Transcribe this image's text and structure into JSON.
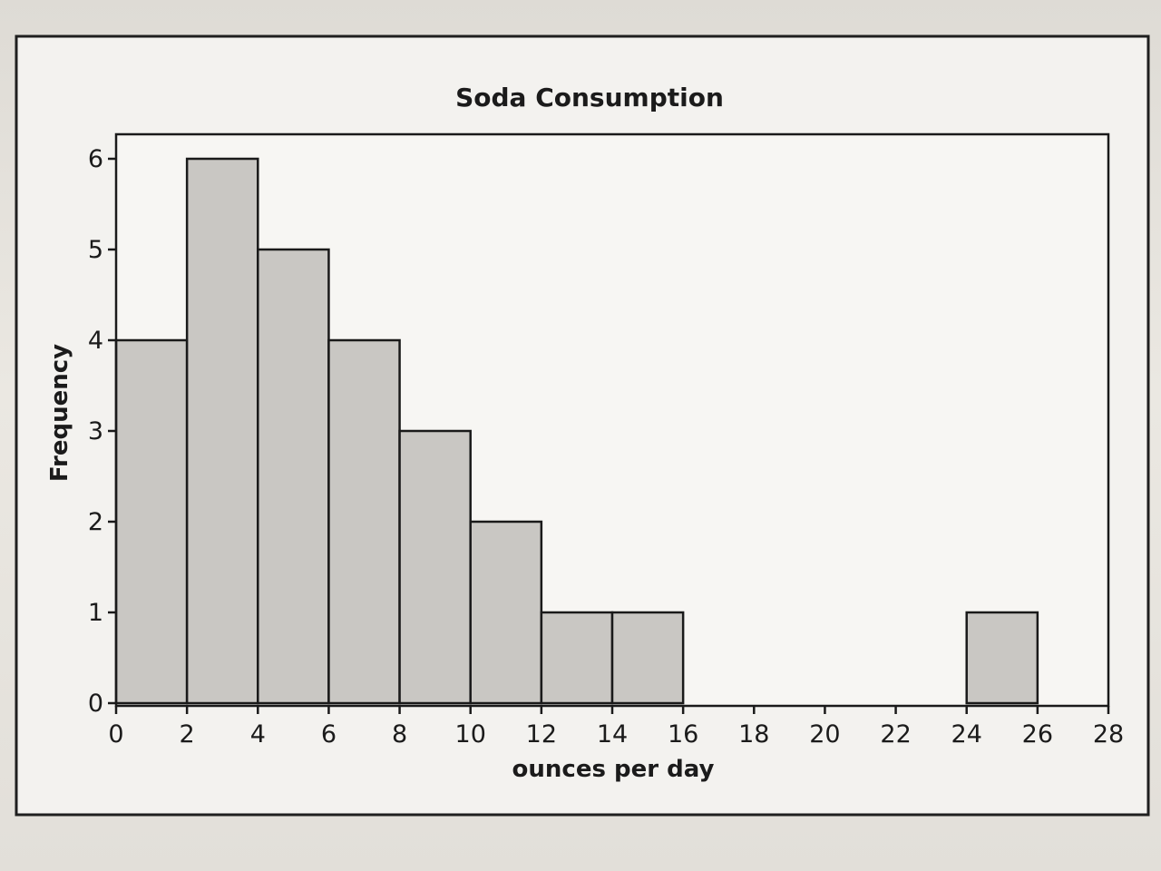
{
  "chart_data": {
    "type": "bar",
    "title": "Soda Consumption",
    "xlabel": "ounces per day",
    "ylabel": "Frequency",
    "bin_edges": [
      0,
      2,
      4,
      6,
      8,
      10,
      12,
      14,
      16,
      18,
      20,
      22,
      24,
      26
    ],
    "values": [
      4,
      6,
      5,
      4,
      3,
      2,
      1,
      1,
      0,
      0,
      0,
      0,
      1
    ],
    "xlim": [
      0,
      28
    ],
    "ylim": [
      0,
      6
    ],
    "x_ticks": [
      "0",
      "2",
      "4",
      "6",
      "8",
      "10",
      "12",
      "14",
      "16",
      "18",
      "20",
      "22",
      "24",
      "26",
      "28"
    ],
    "y_ticks": [
      "0",
      "1",
      "2",
      "3",
      "4",
      "5",
      "6"
    ],
    "grid": false,
    "legend": "none",
    "colors": {
      "bar_fill": "#c9c7c3",
      "bar_edge": "#1a1a1a"
    }
  }
}
